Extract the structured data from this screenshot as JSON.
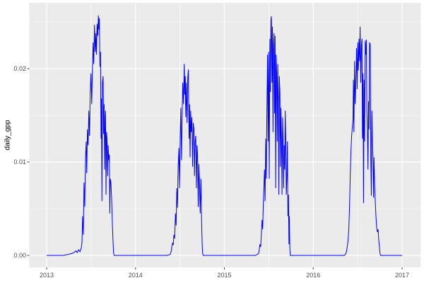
{
  "theme": {
    "outer_background": "#FFFFFF",
    "panel_background": "#EBEBEB",
    "grid_major_color": "#FFFFFF",
    "grid_minor_color": "#FFFFFF",
    "tick_label_color": "#4D4D4D",
    "tick_mark_color": "#333333",
    "axis_title_color": "#000000",
    "line_color": "#0000FF"
  },
  "chart_data": {
    "type": "line",
    "title": "",
    "xlabel": "",
    "ylabel": "daily_gpp",
    "legend": "none",
    "grid": "on",
    "x_axis": {
      "range": [
        2012.79,
        2017.21
      ],
      "ticks": [
        {
          "label": "2013",
          "value": 2013
        },
        {
          "label": "2014",
          "value": 2014
        },
        {
          "label": "2015",
          "value": 2015
        },
        {
          "label": "2016",
          "value": 2016
        },
        {
          "label": "2017",
          "value": 2017
        }
      ],
      "minor": [
        2013.5,
        2014.5,
        2015.5,
        2016.5
      ]
    },
    "y_axis": {
      "range": [
        -0.0013,
        0.027
      ],
      "ticks": [
        {
          "label": "0.00",
          "value": 0
        },
        {
          "label": "0.01",
          "value": 0.01
        },
        {
          "label": "0.02",
          "value": 0.02
        }
      ],
      "minor": [
        0.005,
        0.015,
        0.025
      ]
    },
    "series": [
      {
        "name": "daily_gpp",
        "color": "#0000FF",
        "points": [
          [
            2013.0,
            0
          ],
          [
            2013.06,
            0
          ],
          [
            2013.12,
            0
          ],
          [
            2013.18,
            0
          ],
          [
            2013.24,
            0.0001
          ],
          [
            2013.28,
            0.0002
          ],
          [
            2013.31,
            0.0003
          ],
          [
            2013.33,
            0.0005
          ],
          [
            2013.345,
            0.0003
          ],
          [
            2013.36,
            0.0006
          ],
          [
            2013.375,
            0.0004
          ],
          [
            2013.39,
            0.0008
          ],
          [
            2013.398,
            0.0014
          ],
          [
            2013.405,
            0.0042
          ],
          [
            2013.413,
            0.0022
          ],
          [
            2013.421,
            0.0078
          ],
          [
            2013.429,
            0.0052
          ],
          [
            2013.437,
            0.0105
          ],
          [
            2013.445,
            0.0122
          ],
          [
            2013.451,
            0.0088
          ],
          [
            2013.459,
            0.0135
          ],
          [
            2013.467,
            0.0118
          ],
          [
            2013.475,
            0.0155
          ],
          [
            2013.483,
            0.0128
          ],
          [
            2013.491,
            0.0175
          ],
          [
            2013.499,
            0.0195
          ],
          [
            2013.507,
            0.0162
          ],
          [
            2013.515,
            0.02
          ],
          [
            2013.523,
            0.0228
          ],
          [
            2013.53,
            0.0205
          ],
          [
            2013.538,
            0.0247
          ],
          [
            2013.546,
            0.0218
          ],
          [
            2013.554,
            0.0238
          ],
          [
            2013.56,
            0.0215
          ],
          [
            2013.568,
            0.0248
          ],
          [
            2013.576,
            0.0235
          ],
          [
            2013.582,
            0.0257
          ],
          [
            2013.588,
            0.0242
          ],
          [
            2013.593,
            0.0254
          ],
          [
            2013.6,
            0.0202
          ],
          [
            2013.606,
            0.0218
          ],
          [
            2013.612,
            0.0125
          ],
          [
            2013.617,
            0.0168
          ],
          [
            2013.622,
            0.0058
          ],
          [
            2013.628,
            0.0185
          ],
          [
            2013.635,
            0.0192
          ],
          [
            2013.641,
            0.013
          ],
          [
            2013.647,
            0.0162
          ],
          [
            2013.653,
            0.0092
          ],
          [
            2013.659,
            0.0148
          ],
          [
            2013.663,
            0.0155
          ],
          [
            2013.668,
            0.0065
          ],
          [
            2013.674,
            0.0132
          ],
          [
            2013.68,
            0.0125
          ],
          [
            2013.686,
            0.0085
          ],
          [
            2013.692,
            0.0118
          ],
          [
            2013.699,
            0.0102
          ],
          [
            2013.705,
            0.0108
          ],
          [
            2013.711,
            0.0045
          ],
          [
            2013.716,
            0.0082
          ],
          [
            2013.723,
            0.0078
          ],
          [
            2013.731,
            0.0062
          ],
          [
            2013.74,
            0.0032
          ],
          [
            2013.748,
            0.0012
          ],
          [
            2013.754,
            0.0002
          ],
          [
            2013.76,
            0
          ],
          [
            2013.85,
            0
          ],
          [
            2013.95,
            0
          ],
          [
            2014.05,
            0
          ],
          [
            2014.15,
            0
          ],
          [
            2014.25,
            0
          ],
          [
            2014.35,
            0
          ],
          [
            2014.39,
            0.0001
          ],
          [
            2014.4,
            0.0004
          ],
          [
            2014.408,
            0.0009
          ],
          [
            2014.416,
            0.0013
          ],
          [
            2014.424,
            0.0011
          ],
          [
            2014.432,
            0.0022
          ],
          [
            2014.44,
            0.0018
          ],
          [
            2014.45,
            0.0045
          ],
          [
            2014.457,
            0.0032
          ],
          [
            2014.465,
            0.0072
          ],
          [
            2014.472,
            0.0051
          ],
          [
            2014.48,
            0.0095
          ],
          [
            2014.488,
            0.0115
          ],
          [
            2014.495,
            0.0072
          ],
          [
            2014.503,
            0.0128
          ],
          [
            2014.51,
            0.0158
          ],
          [
            2014.517,
            0.0102
          ],
          [
            2014.524,
            0.0142
          ],
          [
            2014.532,
            0.0185
          ],
          [
            2014.54,
            0.0162
          ],
          [
            2014.548,
            0.0205
          ],
          [
            2014.554,
            0.0172
          ],
          [
            2014.56,
            0.0192
          ],
          [
            2014.566,
            0.0148
          ],
          [
            2014.572,
            0.0185
          ],
          [
            2014.58,
            0.0142
          ],
          [
            2014.588,
            0.019
          ],
          [
            2014.595,
            0.0199
          ],
          [
            2014.602,
            0.0125
          ],
          [
            2014.608,
            0.0162
          ],
          [
            2014.614,
            0.0105
          ],
          [
            2014.621,
            0.0155
          ],
          [
            2014.628,
            0.0132
          ],
          [
            2014.635,
            0.0148
          ],
          [
            2014.642,
            0.0095
          ],
          [
            2014.65,
            0.0142
          ],
          [
            2014.657,
            0.0135
          ],
          [
            2014.664,
            0.0085
          ],
          [
            2014.671,
            0.0122
          ],
          [
            2014.678,
            0.0128
          ],
          [
            2014.685,
            0.0072
          ],
          [
            2014.692,
            0.0118
          ],
          [
            2014.699,
            0.0108
          ],
          [
            2014.706,
            0.0052
          ],
          [
            2014.713,
            0.0098
          ],
          [
            2014.72,
            0.0078
          ],
          [
            2014.728,
            0.0045
          ],
          [
            2014.736,
            0.0082
          ],
          [
            2014.744,
            0.0035
          ],
          [
            2014.75,
            0.0012
          ],
          [
            2014.756,
            0.0002
          ],
          [
            2014.762,
            0
          ],
          [
            2014.85,
            0
          ],
          [
            2014.95,
            0
          ],
          [
            2015.05,
            0
          ],
          [
            2015.15,
            0
          ],
          [
            2015.25,
            0
          ],
          [
            2015.35,
            0
          ],
          [
            2015.385,
            0.0002
          ],
          [
            2015.392,
            0.0006
          ],
          [
            2015.4,
            0.0012
          ],
          [
            2015.408,
            0.0009
          ],
          [
            2015.416,
            0.0022
          ],
          [
            2015.424,
            0.0038
          ],
          [
            2015.431,
            0.0028
          ],
          [
            2015.438,
            0.0055
          ],
          [
            2015.445,
            0.0075
          ],
          [
            2015.452,
            0.0092
          ],
          [
            2015.458,
            0.0058
          ],
          [
            2015.465,
            0.0125
          ],
          [
            2015.472,
            0.0082
          ],
          [
            2015.479,
            0.0158
          ],
          [
            2015.486,
            0.0215
          ],
          [
            2015.492,
            0.0122
          ],
          [
            2015.499,
            0.0218
          ],
          [
            2015.505,
            0.0082
          ],
          [
            2015.512,
            0.0232
          ],
          [
            2015.518,
            0.0175
          ],
          [
            2015.524,
            0.0252
          ],
          [
            2015.529,
            0.0256
          ],
          [
            2015.535,
            0.0185
          ],
          [
            2015.541,
            0.0245
          ],
          [
            2015.547,
            0.0132
          ],
          [
            2015.553,
            0.0225
          ],
          [
            2015.559,
            0.0238
          ],
          [
            2015.565,
            0.0152
          ],
          [
            2015.571,
            0.0235
          ],
          [
            2015.577,
            0.0072
          ],
          [
            2015.583,
            0.0215
          ],
          [
            2015.589,
            0.0195
          ],
          [
            2015.595,
            0.0122
          ],
          [
            2015.601,
            0.0205
          ],
          [
            2015.607,
            0.0168
          ],
          [
            2015.613,
            0.0065
          ],
          [
            2015.619,
            0.0192
          ],
          [
            2015.625,
            0.0175
          ],
          [
            2015.631,
            0.0095
          ],
          [
            2015.637,
            0.0158
          ],
          [
            2015.643,
            0.0122
          ],
          [
            2015.649,
            0.0065
          ],
          [
            2015.655,
            0.0148
          ],
          [
            2015.661,
            0.0125
          ],
          [
            2015.667,
            0.0072
          ],
          [
            2015.673,
            0.0118
          ],
          [
            2015.679,
            0.0092
          ],
          [
            2015.685,
            0.0155
          ],
          [
            2015.691,
            0.0122
          ],
          [
            2015.697,
            0.0065
          ],
          [
            2015.703,
            0.0082
          ],
          [
            2015.709,
            0.0122
          ],
          [
            2015.715,
            0.0042
          ],
          [
            2015.721,
            0.0065
          ],
          [
            2015.727,
            0.0012
          ],
          [
            2015.732,
            0.0042
          ],
          [
            2015.736,
            0.0008
          ],
          [
            2015.742,
            0
          ],
          [
            2015.85,
            0
          ],
          [
            2015.95,
            0
          ],
          [
            2016.05,
            0
          ],
          [
            2016.15,
            0
          ],
          [
            2016.25,
            0
          ],
          [
            2016.35,
            0
          ],
          [
            2016.368,
            0.0002
          ],
          [
            2016.376,
            0.0005
          ],
          [
            2016.384,
            0.001
          ],
          [
            2016.392,
            0.0016
          ],
          [
            2016.4,
            0.0028
          ],
          [
            2016.408,
            0.0052
          ],
          [
            2016.416,
            0.0085
          ],
          [
            2016.424,
            0.0112
          ],
          [
            2016.432,
            0.0128
          ],
          [
            2016.44,
            0.0138
          ],
          [
            2016.447,
            0.0145
          ],
          [
            2016.452,
            0.0188
          ],
          [
            2016.458,
            0.0132
          ],
          [
            2016.465,
            0.0208
          ],
          [
            2016.472,
            0.0162
          ],
          [
            2016.479,
            0.0185
          ],
          [
            2016.487,
            0.0222
          ],
          [
            2016.494,
            0.0178
          ],
          [
            2016.501,
            0.0228
          ],
          [
            2016.508,
            0.0198
          ],
          [
            2016.515,
            0.0232
          ],
          [
            2016.522,
            0.0208
          ],
          [
            2016.528,
            0.0245
          ],
          [
            2016.535,
            0.0185
          ],
          [
            2016.542,
            0.0225
          ],
          [
            2016.548,
            0.0232
          ],
          [
            2016.554,
            0.0125
          ],
          [
            2016.56,
            0.0195
          ],
          [
            2016.566,
            0.0056
          ],
          [
            2016.572,
            0.0188
          ],
          [
            2016.578,
            0.0122
          ],
          [
            2016.585,
            0.023
          ],
          [
            2016.592,
            0.0215
          ],
          [
            2016.598,
            0.0231
          ],
          [
            2016.604,
            0.0155
          ],
          [
            2016.61,
            0.0132
          ],
          [
            2016.616,
            0.0092
          ],
          [
            2016.622,
            0.0165
          ],
          [
            2016.628,
            0.0135
          ],
          [
            2016.634,
            0.0228
          ],
          [
            2016.641,
            0.0226
          ],
          [
            2016.648,
            0.0105
          ],
          [
            2016.654,
            0.0064
          ],
          [
            2016.66,
            0.0155
          ],
          [
            2016.666,
            0.0122
          ],
          [
            2016.672,
            0.0105
          ],
          [
            2016.678,
            0.0062
          ],
          [
            2016.684,
            0.0105
          ],
          [
            2016.691,
            0.0075
          ],
          [
            2016.698,
            0.0058
          ],
          [
            2016.706,
            0.0042
          ],
          [
            2016.714,
            0.003
          ],
          [
            2016.722,
            0.0025
          ],
          [
            2016.73,
            0.0028
          ],
          [
            2016.738,
            0.0015
          ],
          [
            2016.746,
            0.0008
          ],
          [
            2016.752,
            0.0002
          ],
          [
            2016.758,
            0
          ],
          [
            2016.85,
            0
          ],
          [
            2016.95,
            0
          ],
          [
            2017.0,
            0
          ]
        ]
      }
    ]
  }
}
